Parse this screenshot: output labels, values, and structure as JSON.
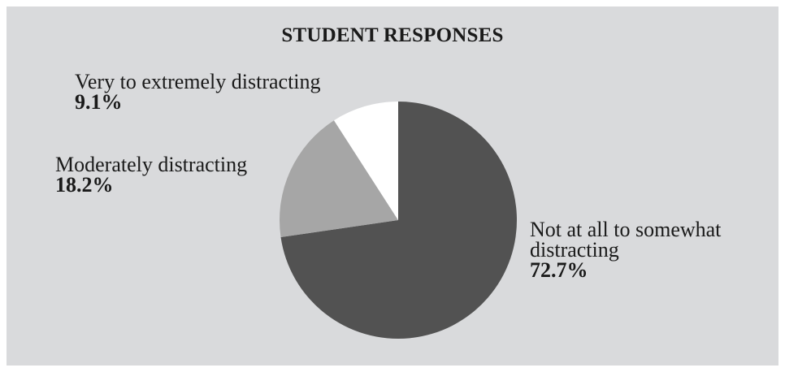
{
  "chart_data": {
    "type": "pie",
    "title": "STUDENT RESPONSES",
    "start_angle_deg": 0,
    "direction": "clockwise",
    "slices": [
      {
        "label": "Not at all to somewhat distracting",
        "value": 72.7,
        "value_label": "72.7%",
        "color": "#525252"
      },
      {
        "label": "Moderately distracting",
        "value": 18.2,
        "value_label": "18.2%",
        "color": "#a6a6a6"
      },
      {
        "label": "Very to extremely distracting",
        "value": 9.1,
        "value_label": "9.1%",
        "color": "#ffffff"
      }
    ]
  }
}
